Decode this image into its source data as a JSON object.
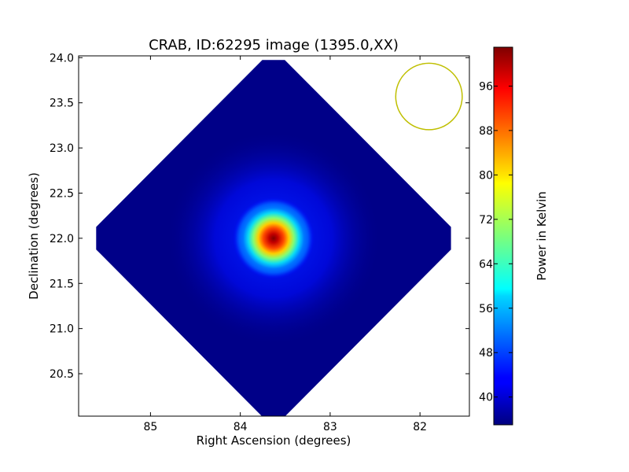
{
  "chart_data": {
    "type": "heatmap",
    "title": "CRAB, ID:62295 image (1395.0,XX)",
    "xlabel": "Right Ascension (degrees)",
    "ylabel": "Declination (degrees)",
    "xlim": [
      85.8,
      81.45
    ],
    "ylim": [
      20.03,
      24.02
    ],
    "x_ticks": [
      85,
      84,
      83,
      82
    ],
    "x_tick_labels": [
      "85",
      "84",
      "83",
      "82"
    ],
    "y_ticks": [
      20.5,
      21.0,
      21.5,
      22.0,
      22.5,
      23.0,
      23.5,
      24.0
    ],
    "y_tick_labels": [
      "20.5",
      "21.0",
      "21.5",
      "22.0",
      "22.5",
      "23.0",
      "23.5",
      "24.0"
    ],
    "map_center": {
      "ra": 83.63,
      "dec": 22.0
    },
    "map_halfwidth_deg": 2.1,
    "source_peak": {
      "ra": 83.63,
      "dec": 22.0,
      "value": 102
    },
    "background_value": 35,
    "beam_circle": {
      "ra": 81.9,
      "dec": 23.57,
      "radius_deg": 0.37
    },
    "beam_color": "#bfbf00",
    "colorbar": {
      "label": "Power in Kelvin",
      "min": 35,
      "max": 103,
      "ticks": [
        40,
        48,
        56,
        64,
        72,
        80,
        88,
        96
      ],
      "tick_labels": [
        "40",
        "48",
        "56",
        "64",
        "72",
        "80",
        "88",
        "96"
      ],
      "colormap": "jet"
    }
  }
}
